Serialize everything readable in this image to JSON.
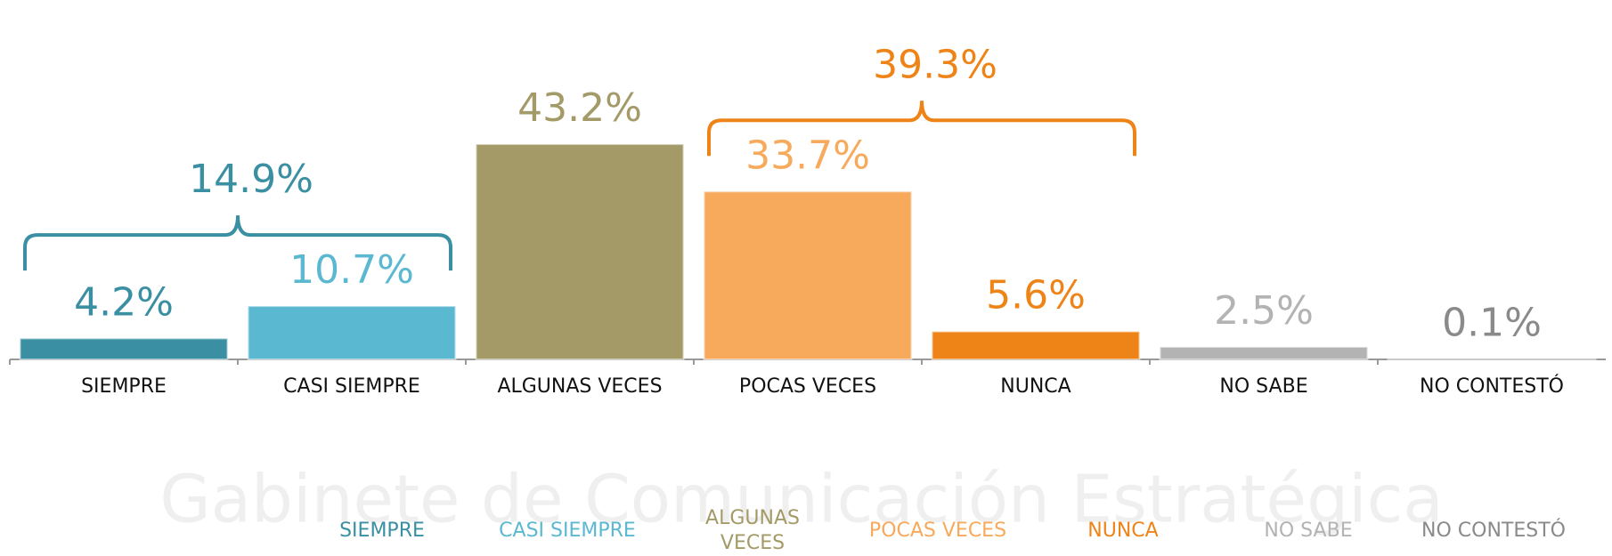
{
  "chart_data": {
    "type": "bar",
    "watermark": "Gabinete de Comunicación Estratégica",
    "categories": [
      "SIEMPRE",
      "CASI SIEMPRE",
      "ALGUNAS VECES",
      "POCAS VECES",
      "NUNCA",
      "NO SABE",
      "NO CONTESTÓ"
    ],
    "series": [
      {
        "name": "",
        "values": [
          4.2,
          10.7,
          43.2,
          33.7,
          5.6,
          2.5,
          0.1
        ],
        "value_labels": [
          "4.2%",
          "10.7%",
          "43.2%",
          "33.7%",
          "5.6%",
          "2.5%",
          "0.1%"
        ],
        "colors": [
          "#3a8fa3",
          "#5bb8d1",
          "#a39a68",
          "#f7a95c",
          "#ee8418",
          "#b3b3b3",
          "#8a8a8a"
        ]
      }
    ],
    "ylim": [
      0,
      50
    ],
    "annotations": [
      {
        "text": "14.9%",
        "categories": [
          "SIEMPRE",
          "CASI SIEMPRE"
        ],
        "color": "#3a8fa3"
      },
      {
        "text": "39.3%",
        "categories": [
          "POCAS VECES",
          "NUNCA"
        ],
        "color": "#ee8418"
      }
    ]
  }
}
